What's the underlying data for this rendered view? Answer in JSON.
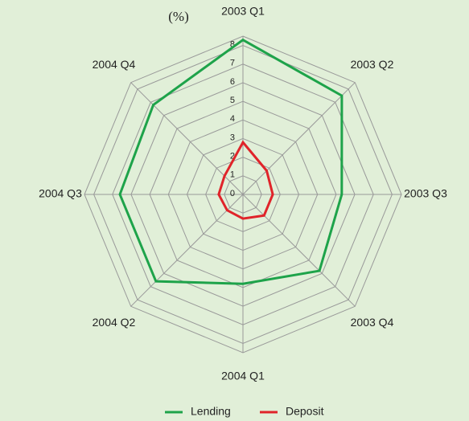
{
  "chart_data": {
    "type": "radar",
    "unit_label": "(%)",
    "categories": [
      "2003 Q1",
      "2003 Q2",
      "2003 Q3",
      "2003 Q4",
      "2004 Q1",
      "2004 Q2",
      "2004 Q3",
      "2004 Q4"
    ],
    "series": [
      {
        "name": "Lending",
        "color": "#1ea34a",
        "values": [
          8.3,
          7.5,
          5.3,
          5.8,
          4.8,
          6.6,
          6.6,
          6.8
        ]
      },
      {
        "name": "Deposit",
        "color": "#e0242a",
        "values": [
          2.8,
          1.8,
          1.6,
          1.6,
          1.3,
          1.2,
          1.3,
          1.4
        ]
      }
    ],
    "ylim": [
      0,
      8.5
    ],
    "yticks": [
      0,
      1,
      2,
      3,
      4,
      5,
      6,
      7,
      8
    ],
    "legend": "bottom"
  }
}
